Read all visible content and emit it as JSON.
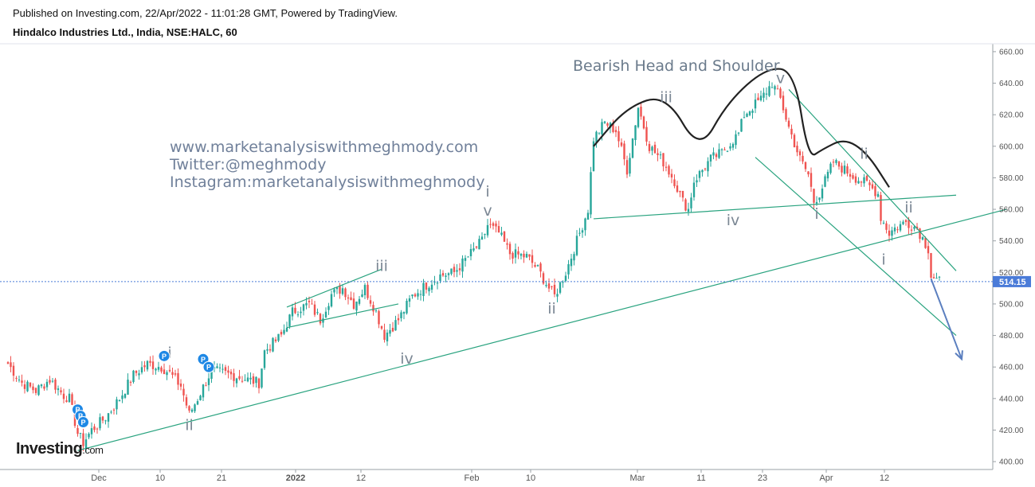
{
  "header": {
    "published_line": "Published on Investing.com, 22/Apr/2022 - 11:01:28 GMT, Powered by TradingView.",
    "symbol_line": "Hindalco Industries Ltd., India, NSE:HALC, 60"
  },
  "watermark": {
    "line1": "www.marketanalysiswithmeghmody.com",
    "line2": "Twitter:@meghmody",
    "line3": "Instagram:marketanalysiswithmeghmody"
  },
  "logo": {
    "text": "Investing",
    "suffix": ".com"
  },
  "colors": {
    "up": "#26a69a",
    "down": "#ef5350",
    "trendline": "#29a37f",
    "price_tag": "#4a7bd8",
    "pattern": "#222222",
    "arrow": "#5b7fbf"
  },
  "chart_data": {
    "type": "candlestick",
    "title": "Bearish Head and Shoulder",
    "ylim": [
      395,
      665
    ],
    "y_ticks": [
      "400.00",
      "420.00",
      "440.00",
      "460.00",
      "480.00",
      "500.00",
      "520.00",
      "540.00",
      "560.00",
      "580.00",
      "600.00",
      "620.00",
      "640.00",
      "660.00"
    ],
    "x_ticks": [
      {
        "label": "Dec",
        "bold": false
      },
      {
        "label": "10",
        "bold": false
      },
      {
        "label": "21",
        "bold": false
      },
      {
        "label": "2022",
        "bold": true
      },
      {
        "label": "12",
        "bold": false
      },
      {
        "label": "Feb",
        "bold": false
      },
      {
        "label": "10",
        "bold": false
      },
      {
        "label": "Mar",
        "bold": false
      },
      {
        "label": "11",
        "bold": false
      },
      {
        "label": "23",
        "bold": false
      },
      {
        "label": "Apr",
        "bold": false
      },
      {
        "label": "12",
        "bold": false
      }
    ],
    "last_price": "514.15",
    "price_path": [
      [
        0,
        462
      ],
      [
        5,
        450
      ],
      [
        10,
        445
      ],
      [
        15,
        452
      ],
      [
        20,
        442
      ],
      [
        22,
        440
      ],
      [
        25,
        418
      ],
      [
        27,
        412
      ],
      [
        30,
        420
      ],
      [
        35,
        428
      ],
      [
        40,
        440
      ],
      [
        45,
        455
      ],
      [
        50,
        462
      ],
      [
        55,
        460
      ],
      [
        58,
        456
      ],
      [
        62,
        448
      ],
      [
        65,
        430
      ],
      [
        68,
        440
      ],
      [
        73,
        458
      ],
      [
        80,
        455
      ],
      [
        90,
        450
      ],
      [
        92,
        470
      ],
      [
        98,
        480
      ],
      [
        102,
        495
      ],
      [
        108,
        500
      ],
      [
        112,
        490
      ],
      [
        116,
        506
      ],
      [
        120,
        510
      ],
      [
        124,
        500
      ],
      [
        128,
        510
      ],
      [
        132,
        495
      ],
      [
        135,
        480
      ],
      [
        140,
        490
      ],
      [
        145,
        505
      ],
      [
        150,
        512
      ],
      [
        155,
        518
      ],
      [
        160,
        520
      ],
      [
        165,
        530
      ],
      [
        170,
        540
      ],
      [
        172,
        550
      ],
      [
        176,
        545
      ],
      [
        180,
        532
      ],
      [
        186,
        530
      ],
      [
        190,
        522
      ],
      [
        194,
        510
      ],
      [
        196,
        505
      ],
      [
        200,
        520
      ],
      [
        204,
        540
      ],
      [
        208,
        560
      ],
      [
        210,
        605
      ],
      [
        214,
        615
      ],
      [
        218,
        610
      ],
      [
        222,
        585
      ],
      [
        226,
        625
      ],
      [
        230,
        600
      ],
      [
        235,
        590
      ],
      [
        239,
        578
      ],
      [
        242,
        565
      ],
      [
        244,
        560
      ],
      [
        246,
        578
      ],
      [
        252,
        592
      ],
      [
        256,
        596
      ],
      [
        262,
        608
      ],
      [
        264,
        620
      ],
      [
        270,
        630
      ],
      [
        274,
        640
      ],
      [
        277,
        630
      ],
      [
        280,
        612
      ],
      [
        284,
        592
      ],
      [
        287,
        582
      ],
      [
        289,
        565
      ],
      [
        291,
        570
      ],
      [
        296,
        590
      ],
      [
        300,
        585
      ],
      [
        304,
        580
      ],
      [
        308,
        576
      ],
      [
        312,
        570
      ],
      [
        313,
        555
      ],
      [
        316,
        545
      ],
      [
        318,
        548
      ],
      [
        322,
        552
      ],
      [
        326,
        548
      ],
      [
        330,
        535
      ],
      [
        331,
        518
      ],
      [
        334,
        514
      ]
    ],
    "trendlines": [
      {
        "p1": [
          25,
          407
        ],
        "p2": [
          358,
          560
        ]
      },
      {
        "p1": [
          100,
          498
        ],
        "p2": [
          134,
          522
        ]
      },
      {
        "p1": [
          100,
          485
        ],
        "p2": [
          140,
          500
        ]
      },
      {
        "p1": [
          210,
          554
        ],
        "p2": [
          340,
          569
        ]
      },
      {
        "p1": [
          280,
          636
        ],
        "p2": [
          340,
          521
        ]
      },
      {
        "p1": [
          268,
          593
        ],
        "p2": [
          340,
          480
        ]
      }
    ],
    "wave_labels": [
      {
        "text": "i",
        "at": [
          58,
          466
        ]
      },
      {
        "text": "ii",
        "at": [
          65,
          420
        ]
      },
      {
        "text": "iii",
        "at": [
          134,
          521
        ]
      },
      {
        "text": "iv",
        "at": [
          143,
          462
        ]
      },
      {
        "text": "i",
        "at": [
          172,
          568
        ]
      },
      {
        "text": "v",
        "at": [
          172,
          556
        ]
      },
      {
        "text": "ii",
        "at": [
          195,
          494
        ]
      },
      {
        "text": "iii",
        "at": [
          236,
          628
        ]
      },
      {
        "text": "iv",
        "at": [
          260,
          550
        ]
      },
      {
        "text": "v",
        "at": [
          277,
          640
        ]
      },
      {
        "text": "i",
        "at": [
          290,
          554
        ]
      },
      {
        "text": "ii",
        "at": [
          307,
          592
        ]
      },
      {
        "text": "i",
        "at": [
          314,
          525
        ]
      },
      {
        "text": "ii",
        "at": [
          323,
          558
        ]
      }
    ],
    "pattern_path": [
      [
        210,
        600
      ],
      [
        222,
        625
      ],
      [
        236,
        633
      ],
      [
        248,
        596
      ],
      [
        258,
        628
      ],
      [
        272,
        650
      ],
      [
        282,
        648
      ],
      [
        287,
        592
      ],
      [
        292,
        598
      ],
      [
        300,
        605
      ],
      [
        308,
        596
      ],
      [
        316,
        574
      ]
    ],
    "forecast_arrow": {
      "from": [
        331,
        516
      ],
      "to": [
        342,
        465
      ]
    },
    "event_markers": [
      {
        "label": "P",
        "at": [
          25,
          433
        ]
      },
      {
        "label": "P",
        "at": [
          26,
          429
        ]
      },
      {
        "label": "P",
        "at": [
          27,
          425
        ]
      },
      {
        "label": "P",
        "at": [
          56,
          467
        ]
      },
      {
        "label": "P",
        "at": [
          70,
          465
        ]
      },
      {
        "label": "P",
        "at": [
          72,
          460
        ]
      }
    ]
  }
}
